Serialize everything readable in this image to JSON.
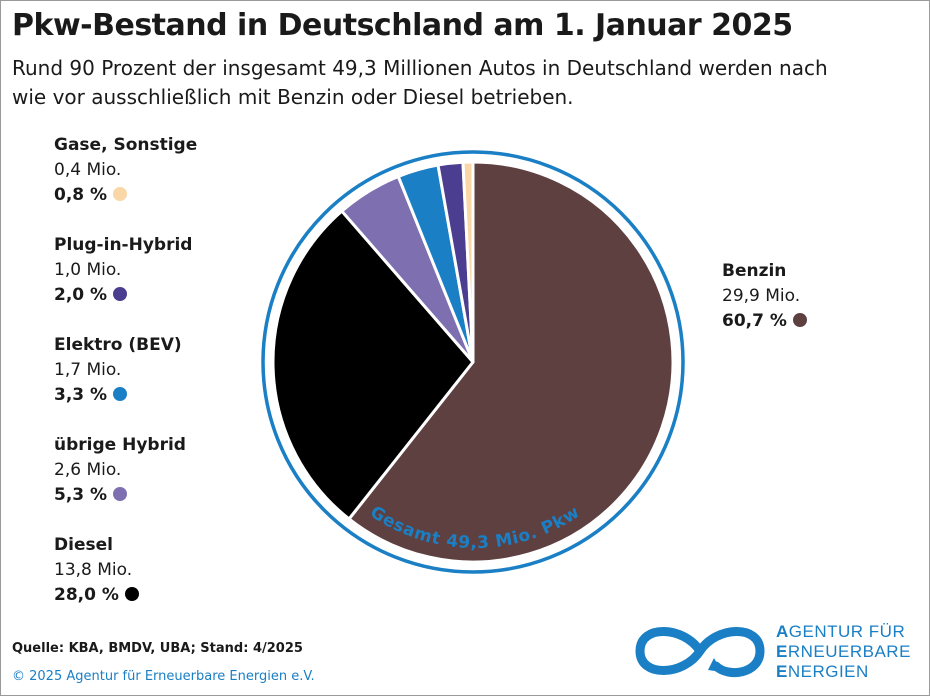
{
  "title": "Pkw-Bestand in Deutschland am 1. Januar 2025",
  "subtitle": "Rund 90 Prozent der insgesamt 49,3 Millionen Autos in Deutschland werden nach wie vor ausschließlich mit Benzin oder Diesel betrieben.",
  "chart_data": {
    "type": "pie",
    "title": "Pkw-Bestand in Deutschland am 1. Januar 2025",
    "total_label": "Gesamt 49,3 Mio. Pkw",
    "unit": "Mio.",
    "slices": [
      {
        "name": "Benzin",
        "value_label": "29,9 Mio.",
        "pct_label": "60,7 %",
        "value": 29.9,
        "pct": 60.7,
        "color": "#5e4040"
      },
      {
        "name": "Diesel",
        "value_label": "13,8 Mio.",
        "pct_label": "28,0 %",
        "value": 13.8,
        "pct": 28.0,
        "color": "#000000"
      },
      {
        "name": "übrige Hybrid",
        "value_label": "2,6 Mio.",
        "pct_label": "5,3 %",
        "value": 2.6,
        "pct": 5.3,
        "color": "#7d6fb0"
      },
      {
        "name": "Elektro (BEV)",
        "value_label": "1,7 Mio.",
        "pct_label": "3,3 %",
        "value": 1.7,
        "pct": 3.3,
        "color": "#1a7fc4"
      },
      {
        "name": "Plug-in-Hybrid",
        "value_label": "1,0 Mio.",
        "pct_label": "2,0 %",
        "value": 1.0,
        "pct": 2.0,
        "color": "#4b3d8f"
      },
      {
        "name": "Gase, Sonstige",
        "value_label": "0,4 Mio.",
        "pct_label": "0,8 %",
        "value": 0.4,
        "pct": 0.8,
        "color": "#f9d7a6"
      }
    ],
    "ring_color": "#1a7fc4"
  },
  "footer": {
    "source": "Quelle: KBA, BMDV, UBA; Stand: 4/2025",
    "copyright": "© 2025 Agentur für Erneuerbare Energien e.V."
  },
  "logo": {
    "line1_initial": "A",
    "line1_rest": "GENTUR FÜR",
    "line2_initial": "E",
    "line2_rest": "RNEUERBARE",
    "line3_initial": "E",
    "line3_rest": "NERGIEN",
    "color": "#1a7fc4"
  }
}
